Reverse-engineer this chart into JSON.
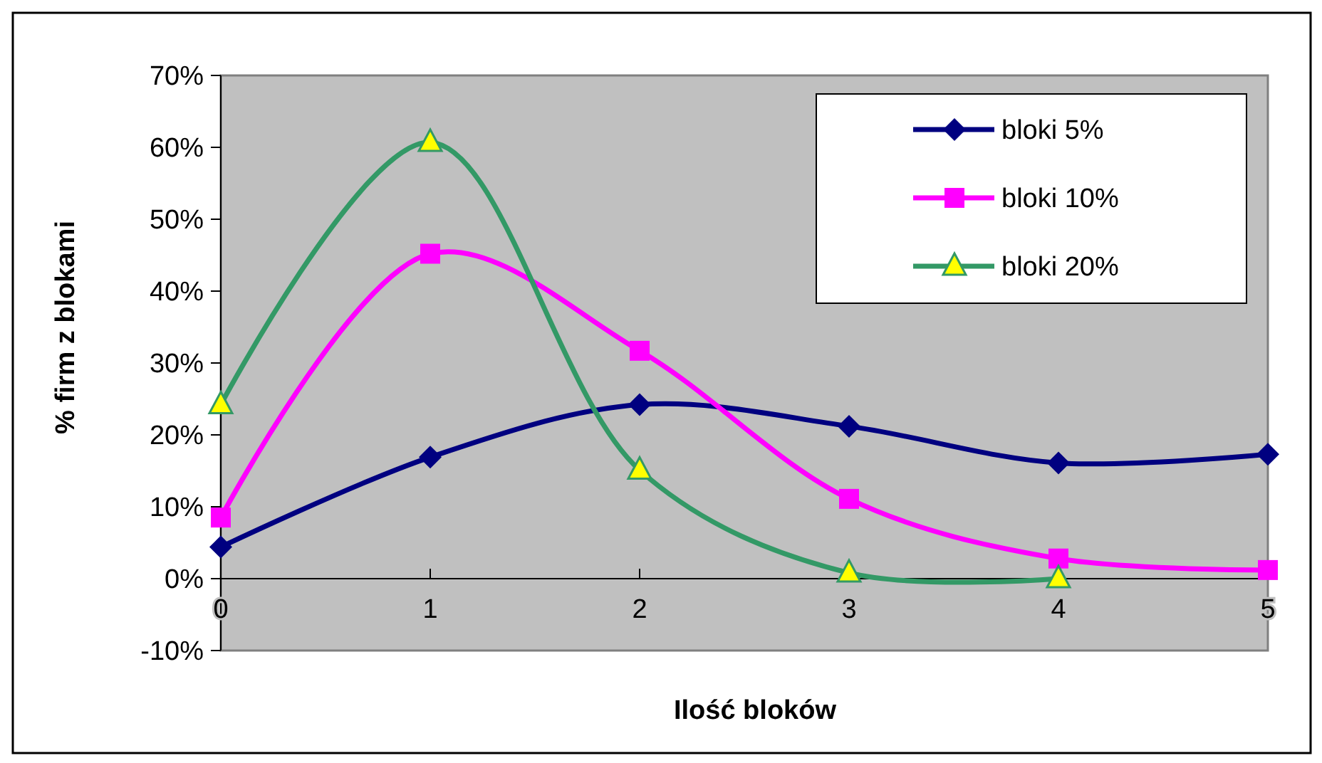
{
  "chart_data": {
    "type": "line",
    "xlabel": "Ilość bloków",
    "ylabel": "% firm z blokami",
    "x": [
      0,
      1,
      2,
      3,
      4,
      5
    ],
    "xlim": [
      0,
      5
    ],
    "xticks": [
      0,
      1,
      2,
      3,
      4,
      5
    ],
    "ylim": [
      -10,
      70
    ],
    "yticks": [
      {
        "value": -10,
        "label": "-10%"
      },
      {
        "value": 0,
        "label": "0%"
      },
      {
        "value": 10,
        "label": "10%"
      },
      {
        "value": 20,
        "label": "20%"
      },
      {
        "value": 30,
        "label": "30%"
      },
      {
        "value": 40,
        "label": "40%"
      },
      {
        "value": 50,
        "label": "50%"
      },
      {
        "value": 60,
        "label": "60%"
      },
      {
        "value": 70,
        "label": "70%"
      }
    ],
    "grid": false,
    "legend": "top right",
    "line_style": "solid",
    "series": [
      {
        "name": "bloki 5%",
        "color": "#000080",
        "marker": "diamond",
        "values": [
          4.4,
          16.9,
          24.2,
          21.2,
          16.1,
          17.3
        ]
      },
      {
        "name": "bloki 10%",
        "color": "#ff00ff",
        "marker": "square",
        "values": [
          8.5,
          45.2,
          31.7,
          11.1,
          2.8,
          1.2
        ]
      },
      {
        "name": "bloki 20%",
        "color": "#339966",
        "marker": "triangle",
        "values": [
          24.2,
          60.7,
          15.1,
          0.8,
          0,
          null
        ]
      }
    ]
  }
}
